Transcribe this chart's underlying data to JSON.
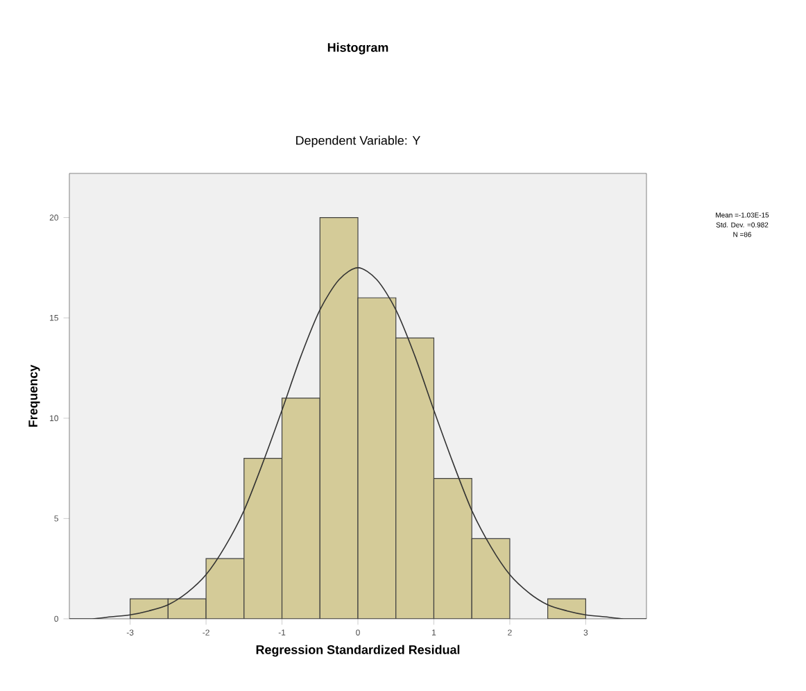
{
  "chart_data": {
    "type": "histogram",
    "title": "Histogram",
    "subtitle": "Dependent Variable: Y",
    "xlabel": "Regression Standardized Residual",
    "ylabel": "Frequency",
    "bins": [
      -3,
      -2.5,
      -2,
      -1.5,
      -1,
      -0.5,
      0,
      0.5,
      1,
      1.5,
      2,
      2.5,
      3
    ],
    "values": [
      1,
      1,
      3,
      8,
      11,
      20,
      16,
      14,
      7,
      4,
      0,
      1
    ],
    "color": "#d4cb98",
    "series": [
      {
        "type": "line",
        "color": "#333333",
        "x": [
          -3.8,
          -3.5,
          -3.25,
          -3,
          -2.75,
          -2.5,
          -2.25,
          -2,
          -1.75,
          -1.5,
          -1.25,
          -1,
          -0.75,
          -0.5,
          -0.25,
          0,
          0.25,
          0.5,
          0.75,
          1,
          1.25,
          1.5,
          1.75,
          2,
          2.25,
          2.5,
          2.75,
          3,
          3.25,
          3.5,
          3.8
        ],
        "values": [
          0,
          0,
          0.1,
          0.2,
          0.4,
          0.7,
          1.3,
          2.2,
          3.6,
          5.4,
          7.8,
          10.4,
          13.1,
          15.4,
          16.9,
          17.5,
          16.9,
          15.4,
          13.1,
          10.4,
          7.8,
          5.4,
          3.6,
          2.2,
          1.3,
          0.7,
          0.4,
          0.2,
          0.1,
          0,
          0
        ]
      }
    ],
    "xlim": [
      -3.8,
      3.8
    ],
    "ylim": [
      0,
      22.2
    ],
    "xticks": [
      -3,
      -2,
      -1,
      0,
      1,
      2,
      3
    ],
    "yticks": [
      0,
      5,
      10,
      15,
      20
    ],
    "annotations": [
      "Mean =-1.03E-15",
      "Std. Dev. =0.982",
      "N =86"
    ]
  }
}
